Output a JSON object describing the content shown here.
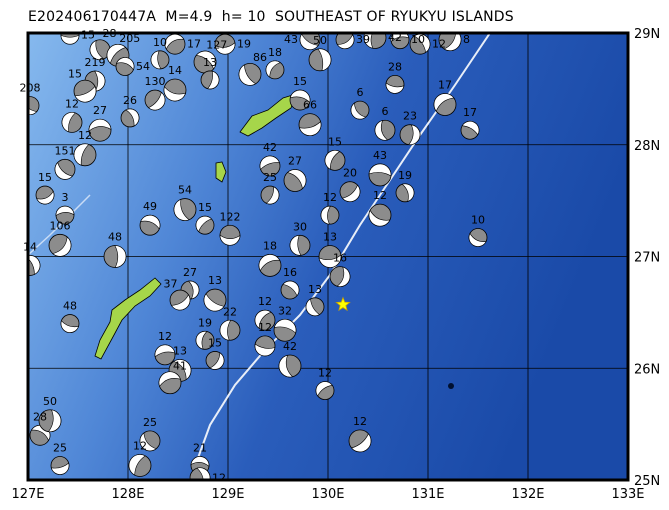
{
  "title": "E202406170447A  M=4.9  h= 10  SOUTHEAST OF RYUKYU ISLANDS",
  "map": {
    "lon_range": [
      127,
      133
    ],
    "lat_range": [
      25,
      29
    ],
    "lon_ticks": [
      "127E",
      "128E",
      "129E",
      "130E",
      "131E",
      "132E",
      "133E"
    ],
    "lat_ticks": [
      "29N",
      "28N",
      "27N",
      "26N",
      "25N"
    ],
    "grid": true,
    "colors": {
      "ocean_shallow": "#7fb3ea",
      "ocean_deep": "#1c4fae",
      "land": "#a6d64a",
      "compression": "#8c8c8c",
      "dilatation": "#ffffff",
      "trench": "#e8eef8",
      "main_event": "#ffff00"
    }
  },
  "main_event": {
    "lon": 130.15,
    "lat": 26.57,
    "depth": "10"
  },
  "events": [
    {
      "lon": 127.42,
      "lat": 28.98,
      "depth": "15"
    },
    {
      "lon": 127.72,
      "lat": 28.85,
      "depth": "28"
    },
    {
      "lon": 127.9,
      "lat": 28.8,
      "depth": "205"
    },
    {
      "lon": 127.97,
      "lat": 28.7,
      "depth": "54"
    },
    {
      "lon": 127.67,
      "lat": 28.57,
      "depth": "219"
    },
    {
      "lon": 127.57,
      "lat": 28.48,
      "depth": "15"
    },
    {
      "lon": 127.02,
      "lat": 28.35,
      "depth": "208"
    },
    {
      "lon": 127.44,
      "lat": 28.2,
      "depth": "12"
    },
    {
      "lon": 127.72,
      "lat": 28.13,
      "depth": "27"
    },
    {
      "lon": 128.02,
      "lat": 28.24,
      "depth": "26"
    },
    {
      "lon": 128.27,
      "lat": 28.4,
      "depth": "130"
    },
    {
      "lon": 128.47,
      "lat": 28.49,
      "depth": "14"
    },
    {
      "lon": 128.32,
      "lat": 28.76,
      "depth": "10"
    },
    {
      "lon": 128.47,
      "lat": 28.9,
      "depth": "17"
    },
    {
      "lon": 128.77,
      "lat": 28.74,
      "depth": "127"
    },
    {
      "lon": 128.82,
      "lat": 28.58,
      "depth": "13"
    },
    {
      "lon": 128.97,
      "lat": 28.9,
      "depth": "19"
    },
    {
      "lon": 129.22,
      "lat": 28.63,
      "depth": "86"
    },
    {
      "lon": 129.47,
      "lat": 28.67,
      "depth": "18"
    },
    {
      "lon": 129.72,
      "lat": 28.4,
      "depth": "15"
    },
    {
      "lon": 129.92,
      "lat": 28.76,
      "depth": "50"
    },
    {
      "lon": 130.17,
      "lat": 28.94,
      "depth": "39"
    },
    {
      "lon": 129.82,
      "lat": 28.94,
      "depth": "43"
    },
    {
      "lon": 130.47,
      "lat": 28.96,
      "depth": "42"
    },
    {
      "lon": 130.72,
      "lat": 28.94,
      "depth": "10"
    },
    {
      "lon": 130.92,
      "lat": 28.9,
      "depth": "12"
    },
    {
      "lon": 131.22,
      "lat": 28.94,
      "depth": "8"
    },
    {
      "lon": 130.67,
      "lat": 28.54,
      "depth": "28"
    },
    {
      "lon": 130.57,
      "lat": 28.13,
      "depth": "6"
    },
    {
      "lon": 131.17,
      "lat": 28.36,
      "depth": "17"
    },
    {
      "lon": 131.42,
      "lat": 28.13,
      "depth": "17"
    },
    {
      "lon": 130.82,
      "lat": 28.09,
      "depth": "23"
    },
    {
      "lon": 129.82,
      "lat": 28.18,
      "depth": "66"
    },
    {
      "lon": 130.32,
      "lat": 28.31,
      "depth": "6"
    },
    {
      "lon": 130.07,
      "lat": 27.86,
      "depth": "15"
    },
    {
      "lon": 130.52,
      "lat": 27.73,
      "depth": "43"
    },
    {
      "lon": 130.77,
      "lat": 27.57,
      "depth": "19"
    },
    {
      "lon": 130.22,
      "lat": 27.58,
      "depth": "20"
    },
    {
      "lon": 130.52,
      "lat": 27.37,
      "depth": "12"
    },
    {
      "lon": 130.02,
      "lat": 27.37,
      "depth": "12"
    },
    {
      "lon": 129.42,
      "lat": 27.81,
      "depth": "42"
    },
    {
      "lon": 129.67,
      "lat": 27.68,
      "depth": "27"
    },
    {
      "lon": 129.42,
      "lat": 27.55,
      "depth": "25"
    },
    {
      "lon": 129.02,
      "lat": 27.19,
      "depth": "122"
    },
    {
      "lon": 128.57,
      "lat": 27.42,
      "depth": "54"
    },
    {
      "lon": 128.77,
      "lat": 27.28,
      "depth": "15"
    },
    {
      "lon": 128.22,
      "lat": 27.28,
      "depth": "49"
    },
    {
      "lon": 127.87,
      "lat": 27.0,
      "depth": "48"
    },
    {
      "lon": 127.17,
      "lat": 27.55,
      "depth": "15"
    },
    {
      "lon": 127.37,
      "lat": 27.78,
      "depth": "151"
    },
    {
      "lon": 127.57,
      "lat": 27.91,
      "depth": "12"
    },
    {
      "lon": 127.37,
      "lat": 27.37,
      "depth": "3"
    },
    {
      "lon": 127.02,
      "lat": 26.92,
      "depth": "14"
    },
    {
      "lon": 127.32,
      "lat": 27.1,
      "depth": "106"
    },
    {
      "lon": 127.42,
      "lat": 26.4,
      "depth": "48"
    },
    {
      "lon": 129.72,
      "lat": 27.1,
      "depth": "30"
    },
    {
      "lon": 129.42,
      "lat": 26.92,
      "depth": "18"
    },
    {
      "lon": 129.62,
      "lat": 26.7,
      "depth": "16"
    },
    {
      "lon": 130.12,
      "lat": 26.82,
      "depth": "16"
    },
    {
      "lon": 130.02,
      "lat": 27.0,
      "depth": "13"
    },
    {
      "lon": 129.87,
      "lat": 26.55,
      "depth": "13"
    },
    {
      "lon": 129.37,
      "lat": 26.43,
      "depth": "12"
    },
    {
      "lon": 129.57,
      "lat": 26.34,
      "depth": "32"
    },
    {
      "lon": 128.62,
      "lat": 26.7,
      "depth": "27"
    },
    {
      "lon": 128.52,
      "lat": 26.61,
      "depth": "37"
    },
    {
      "lon": 128.87,
      "lat": 26.61,
      "depth": "13"
    },
    {
      "lon": 128.77,
      "lat": 26.25,
      "depth": "19"
    },
    {
      "lon": 128.37,
      "lat": 26.12,
      "depth": "12"
    },
    {
      "lon": 128.52,
      "lat": 25.98,
      "depth": "13"
    },
    {
      "lon": 128.87,
      "lat": 26.07,
      "depth": "15"
    },
    {
      "lon": 129.37,
      "lat": 26.2,
      "depth": "12"
    },
    {
      "lon": 129.62,
      "lat": 26.02,
      "depth": "42"
    },
    {
      "lon": 129.97,
      "lat": 25.8,
      "depth": "12"
    },
    {
      "lon": 127.12,
      "lat": 25.4,
      "depth": "28"
    },
    {
      "lon": 127.22,
      "lat": 25.53,
      "depth": "50"
    },
    {
      "lon": 127.32,
      "lat": 25.13,
      "depth": "25"
    },
    {
      "lon": 128.22,
      "lat": 25.35,
      "depth": "25"
    },
    {
      "lon": 128.12,
      "lat": 25.13,
      "depth": "12"
    },
    {
      "lon": 128.72,
      "lat": 25.13,
      "depth": "21"
    },
    {
      "lon": 128.72,
      "lat": 25.02,
      "depth": "12"
    },
    {
      "lon": 130.32,
      "lat": 25.35,
      "depth": "12"
    },
    {
      "lon": 131.5,
      "lat": 27.17,
      "depth": "10"
    },
    {
      "lon": 129.02,
      "lat": 26.34,
      "depth": "22"
    },
    {
      "lon": 128.42,
      "lat": 25.87,
      "depth": "41"
    }
  ]
}
